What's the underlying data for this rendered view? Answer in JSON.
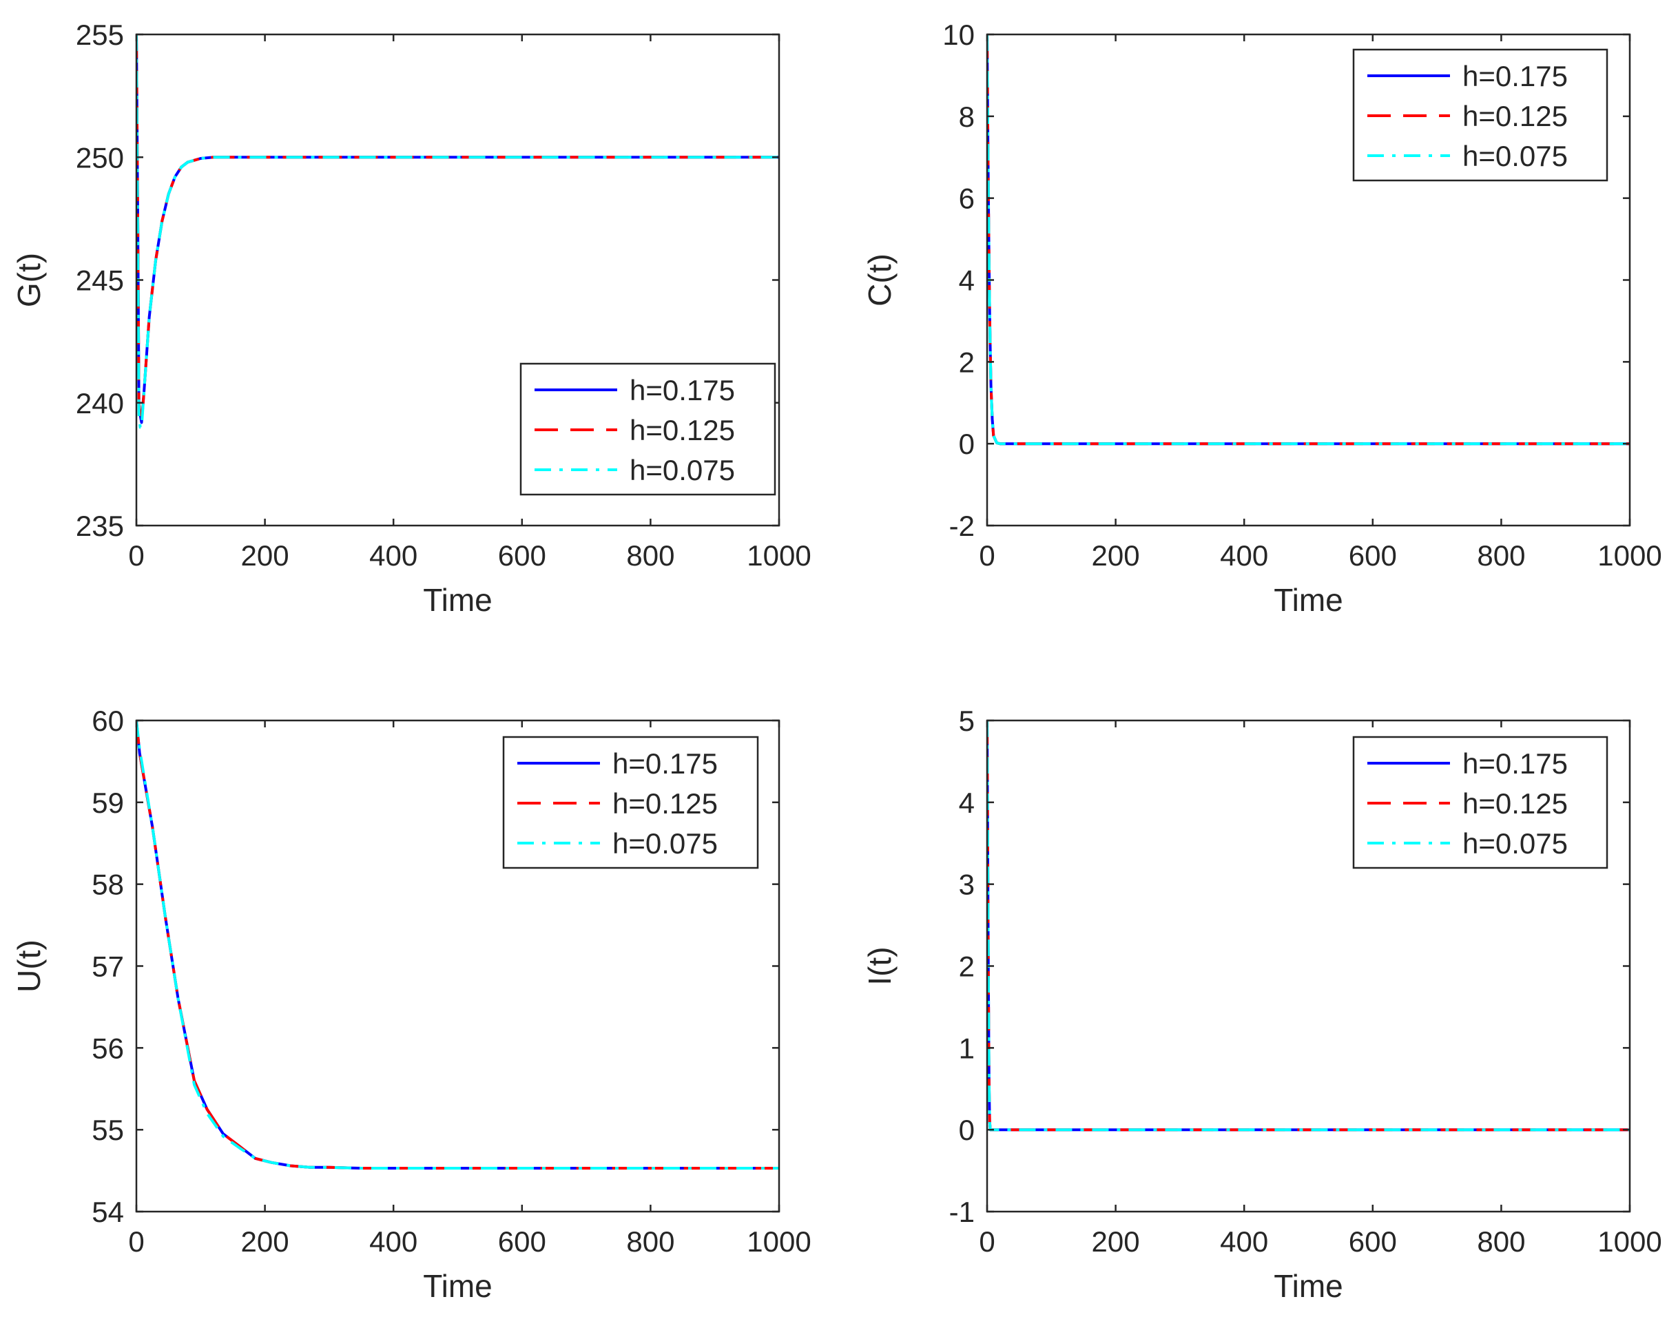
{
  "chart_data": [
    {
      "type": "line",
      "ylabel": "G(t)",
      "xlabel": "Time",
      "xlim": [
        0,
        1000
      ],
      "ylim": [
        235,
        255
      ],
      "xticks": [
        "0",
        "200",
        "400",
        "600",
        "800",
        "1000"
      ],
      "yticks": [
        "235",
        "240",
        "245",
        "250",
        "255"
      ],
      "legend_position": "bottom-right",
      "series": [
        {
          "name": "h=0.175",
          "color": "#0000ff",
          "style": "solid",
          "x": [
            0,
            2,
            4,
            6,
            8,
            12,
            20,
            30,
            40,
            50,
            60,
            70,
            80,
            100,
            120,
            150,
            200,
            400,
            600,
            800,
            1000
          ],
          "y": [
            255,
            248,
            240,
            239.5,
            239.2,
            240.5,
            243.5,
            245.8,
            247.4,
            248.5,
            249.2,
            249.6,
            249.8,
            249.95,
            250,
            250,
            250,
            250,
            250,
            250,
            250
          ]
        },
        {
          "name": "h=0.125",
          "color": "#ff0000",
          "style": "dashed",
          "x": [
            0,
            2,
            4,
            6,
            8,
            12,
            20,
            30,
            40,
            50,
            60,
            70,
            80,
            100,
            120,
            150,
            200,
            400,
            600,
            800,
            1000
          ],
          "y": [
            255,
            248,
            240,
            239.5,
            239.2,
            240.5,
            243.5,
            245.8,
            247.4,
            248.5,
            249.2,
            249.6,
            249.8,
            249.95,
            250,
            250,
            250,
            250,
            250,
            250,
            250
          ]
        },
        {
          "name": "h=0.075",
          "color": "#00ffff",
          "style": "dashdot",
          "x": [
            0,
            2,
            4,
            6,
            8,
            12,
            20,
            30,
            40,
            50,
            60,
            70,
            80,
            100,
            120,
            150,
            200,
            400,
            600,
            800,
            1000
          ],
          "y": [
            255,
            247,
            239.5,
            239,
            239,
            240.5,
            243.5,
            245.8,
            247.4,
            248.5,
            249.2,
            249.6,
            249.8,
            249.95,
            250,
            250,
            250,
            250,
            250,
            250,
            250
          ]
        }
      ]
    },
    {
      "type": "line",
      "ylabel": "C(t)",
      "xlabel": "Time",
      "xlim": [
        0,
        1000
      ],
      "ylim": [
        -2,
        10
      ],
      "xticks": [
        "0",
        "200",
        "400",
        "600",
        "800",
        "1000"
      ],
      "yticks": [
        "-2",
        "0",
        "2",
        "4",
        "6",
        "8",
        "10"
      ],
      "legend_position": "top-right",
      "series": [
        {
          "name": "h=0.175",
          "color": "#0000ff",
          "style": "solid",
          "x": [
            0,
            1,
            2,
            3,
            4,
            5,
            6,
            8,
            10,
            15,
            20,
            50,
            1000
          ],
          "y": [
            10,
            8,
            6,
            4.5,
            3.2,
            2.2,
            1.4,
            0.6,
            0.2,
            0.02,
            0,
            0,
            0
          ]
        },
        {
          "name": "h=0.125",
          "color": "#ff0000",
          "style": "dashed",
          "x": [
            0,
            1,
            2,
            3,
            4,
            5,
            6,
            8,
            10,
            15,
            20,
            50,
            1000
          ],
          "y": [
            10,
            8,
            6,
            4.5,
            3.2,
            2.2,
            1.4,
            0.6,
            0.2,
            0.02,
            0,
            0,
            0
          ]
        },
        {
          "name": "h=0.075",
          "color": "#00ffff",
          "style": "dashdot",
          "x": [
            0,
            1,
            2,
            3,
            4,
            5,
            6,
            8,
            10,
            15,
            20,
            50,
            1000
          ],
          "y": [
            10,
            8,
            6,
            4.5,
            3.2,
            2.2,
            1.4,
            0.6,
            0.2,
            0.02,
            0,
            0,
            0
          ]
        }
      ]
    },
    {
      "type": "line",
      "ylabel": "U(t)",
      "xlabel": "Time",
      "xlim": [
        0,
        1000
      ],
      "ylim": [
        54,
        60
      ],
      "xticks": [
        "0",
        "200",
        "400",
        "600",
        "800",
        "1000"
      ],
      "yticks": [
        "54",
        "55",
        "56",
        "57",
        "58",
        "59",
        "60"
      ],
      "legend_position": "top-right",
      "series": [
        {
          "name": "h=0.175",
          "color": "#0000ff",
          "style": "solid",
          "x": [
            0,
            5,
            25,
            45,
            65,
            90,
            110,
            135,
            160,
            185,
            210,
            240,
            270,
            300,
            350,
            400,
            500,
            600,
            800,
            1000
          ],
          "y": [
            60,
            59.6,
            58.7,
            57.6,
            56.6,
            55.6,
            55.25,
            54.95,
            54.8,
            54.65,
            54.6,
            54.56,
            54.54,
            54.54,
            54.53,
            54.53,
            54.53,
            54.53,
            54.53,
            54.53
          ]
        },
        {
          "name": "h=0.125",
          "color": "#ff0000",
          "style": "dashed",
          "x": [
            0,
            5,
            25,
            45,
            65,
            90,
            110,
            135,
            160,
            185,
            210,
            240,
            270,
            300,
            350,
            400,
            500,
            600,
            800,
            1000
          ],
          "y": [
            60,
            59.6,
            58.7,
            57.6,
            56.6,
            55.6,
            55.25,
            54.95,
            54.8,
            54.65,
            54.6,
            54.56,
            54.54,
            54.54,
            54.53,
            54.53,
            54.53,
            54.53,
            54.53,
            54.53
          ]
        },
        {
          "name": "h=0.075",
          "color": "#00ffff",
          "style": "dashdot",
          "x": [
            0,
            5,
            25,
            45,
            65,
            90,
            110,
            135,
            160,
            185,
            210,
            240,
            270,
            300,
            350,
            400,
            500,
            600,
            800,
            1000
          ],
          "y": [
            60,
            59.65,
            58.7,
            57.6,
            56.6,
            55.55,
            55.2,
            54.92,
            54.78,
            54.65,
            54.6,
            54.56,
            54.54,
            54.54,
            54.53,
            54.53,
            54.53,
            54.53,
            54.53,
            54.53
          ]
        }
      ]
    },
    {
      "type": "line",
      "ylabel": "I(t)",
      "xlabel": "Time",
      "xlim": [
        0,
        1000
      ],
      "ylim": [
        -1,
        5
      ],
      "xticks": [
        "0",
        "200",
        "400",
        "600",
        "800",
        "1000"
      ],
      "yticks": [
        "-1",
        "0",
        "1",
        "2",
        "3",
        "4",
        "5"
      ],
      "legend_position": "top-right",
      "series": [
        {
          "name": "h=0.175",
          "color": "#0000ff",
          "style": "solid",
          "x": [
            0,
            1,
            2,
            3,
            4,
            5,
            1000
          ],
          "y": [
            5,
            3.5,
            1.8,
            0.6,
            0.1,
            0,
            0
          ]
        },
        {
          "name": "h=0.125",
          "color": "#ff0000",
          "style": "dashed",
          "x": [
            0,
            1,
            2,
            3,
            4,
            5,
            1000
          ],
          "y": [
            5,
            3.5,
            1.8,
            0.6,
            0.1,
            0,
            0
          ]
        },
        {
          "name": "h=0.075",
          "color": "#00ffff",
          "style": "dashdot",
          "x": [
            0,
            1,
            2,
            3,
            4,
            5,
            1000
          ],
          "y": [
            5,
            3.5,
            1.8,
            0.6,
            0.1,
            0,
            0
          ]
        }
      ]
    }
  ]
}
